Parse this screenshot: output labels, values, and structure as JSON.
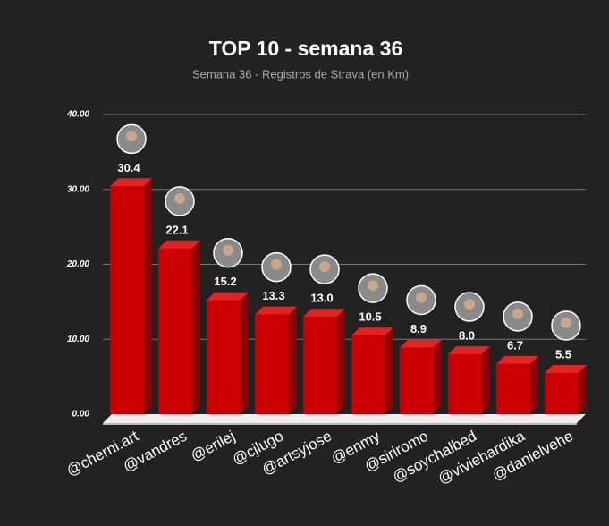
{
  "chart_data": {
    "type": "bar3d",
    "title": "TOP 10 - semana 36",
    "subtitle": "Semana 36 - Registros de Strava (en Km)",
    "categories": [
      "@cherni.art",
      "@vandres",
      "@erilej",
      "@cjlugo",
      "@artsyjose",
      "@enmy",
      "@siriromo",
      "@soychalbed",
      "@viviehardika",
      "@danielvehe"
    ],
    "values": [
      30.4,
      22.1,
      15.2,
      13.3,
      13.0,
      10.5,
      8.9,
      8.0,
      6.7,
      5.5
    ],
    "value_labels": [
      "30.4",
      "22.1",
      "15.2",
      "13.3",
      "13.0",
      "10.5",
      "8.9",
      "8.0",
      "6.7",
      "5.5"
    ],
    "color": "#cc0000",
    "ylim": [
      0,
      40
    ],
    "yticks": [
      {
        "value": 0,
        "label": "0.00"
      },
      {
        "value": 10,
        "label": "10.00"
      },
      {
        "value": 20,
        "label": "20.00"
      },
      {
        "value": 30,
        "label": "30.00"
      },
      {
        "value": 40,
        "label": "40.00"
      }
    ],
    "grid": true
  }
}
